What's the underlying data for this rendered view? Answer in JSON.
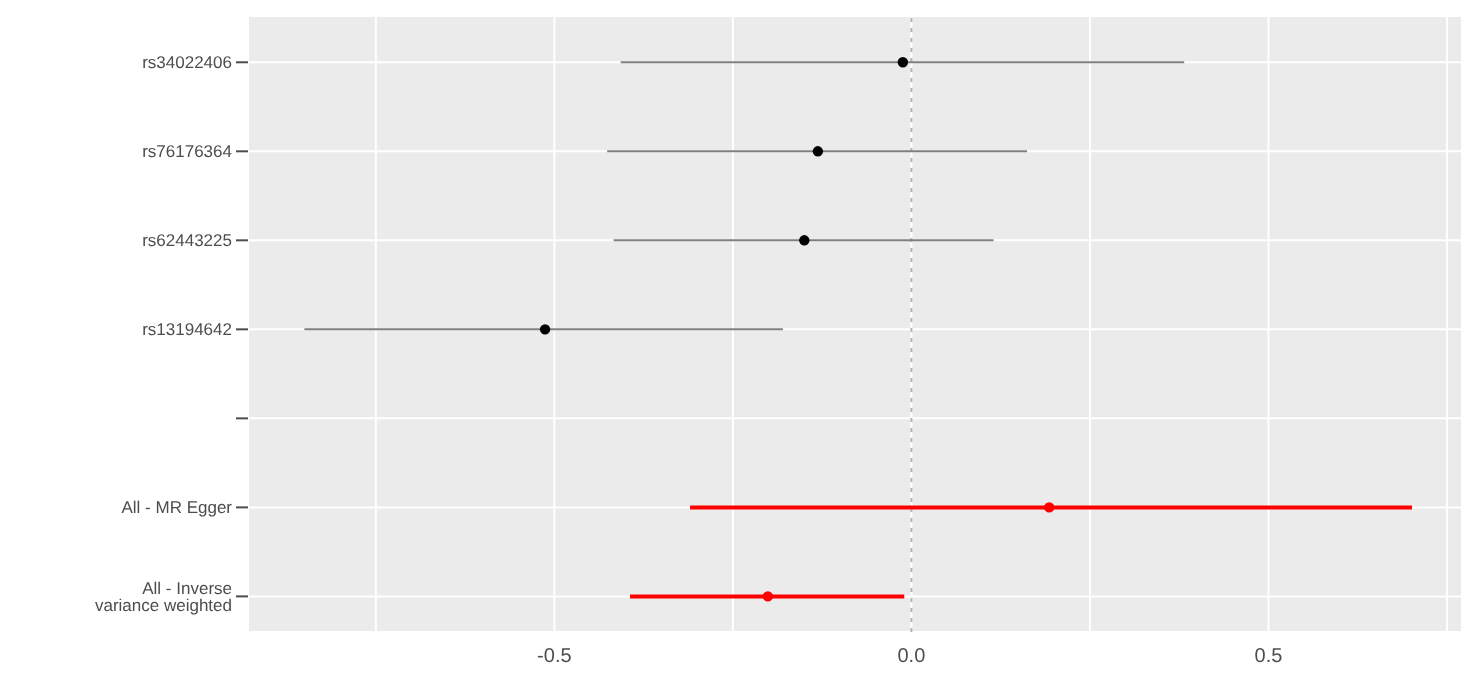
{
  "chart_data": {
    "type": "scatter",
    "orientation": "horizontal",
    "categories": [
      "rs34022406",
      "rs76176364",
      "rs62443225",
      "rs13194642",
      null,
      "All - MR Egger",
      "All - Inverse variance weighted"
    ],
    "series": [
      {
        "type": "scatter",
        "values": [
          -0.012,
          -0.131,
          -0.15,
          -0.513,
          null,
          0.193,
          -0.201
        ],
        "errors": [
          [
            -0.407,
            0.382
          ],
          [
            -0.426,
            0.162
          ],
          [
            -0.417,
            0.115
          ],
          [
            -0.85,
            -0.18
          ],
          null,
          [
            -0.31,
            0.701
          ],
          [
            -0.394,
            -0.01
          ]
        ],
        "colors": [
          "#000000",
          "#000000",
          "#000000",
          "#000000",
          null,
          "#ff0000",
          "#ff0000"
        ]
      }
    ],
    "xlim": [
      -0.929,
      0.771
    ],
    "xticks": [
      {
        "value": -0.75,
        "label": null
      },
      {
        "value": -0.5,
        "label": "-0.5"
      },
      {
        "value": -0.25,
        "label": null
      },
      {
        "value": 0,
        "label": "0.0"
      },
      {
        "value": 0.25,
        "label": null
      },
      {
        "value": 0.5,
        "label": "0.5"
      },
      {
        "value": 0.75,
        "label": null
      }
    ],
    "ref_lines": [
      {
        "axis": "x",
        "value": 0,
        "color": "#b3b3b3",
        "line_style": "dotted"
      }
    ],
    "grid": true,
    "marker": "circle"
  }
}
